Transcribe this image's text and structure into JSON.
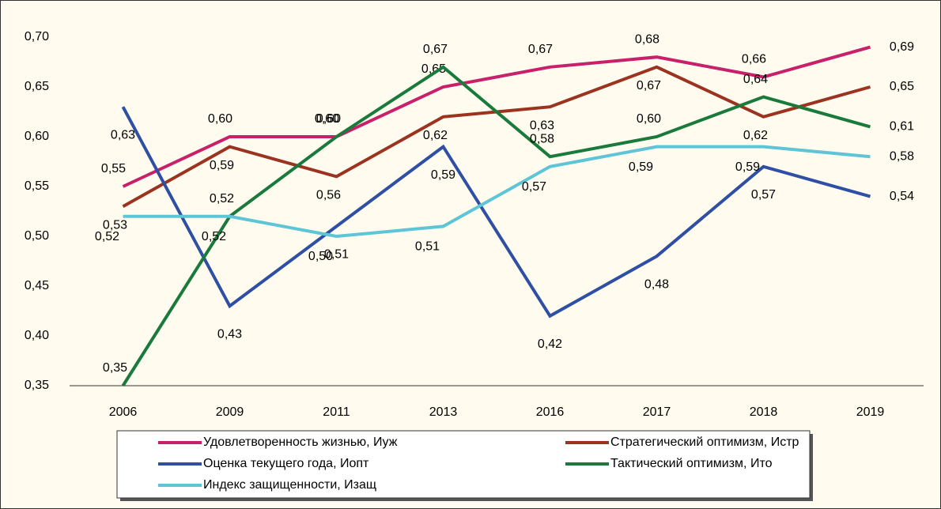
{
  "chart_data": {
    "type": "line",
    "categories": [
      "2006",
      "2009",
      "2011",
      "2013",
      "2016",
      "2017",
      "2018",
      "2019"
    ],
    "ylim": [
      0.35,
      0.7
    ],
    "yticks": [
      {
        "value": 0.35,
        "label": "0,35"
      },
      {
        "value": 0.4,
        "label": "0,40"
      },
      {
        "value": 0.45,
        "label": "0,45"
      },
      {
        "value": 0.5,
        "label": "0,50"
      },
      {
        "value": 0.55,
        "label": "0,55"
      },
      {
        "value": 0.6,
        "label": "0,60"
      },
      {
        "value": 0.65,
        "label": "0,65"
      },
      {
        "value": 0.7,
        "label": "0,70"
      }
    ],
    "grid": false,
    "legend": "bottom",
    "series": [
      {
        "name": "Удовлетворенность жизнью, Иуж",
        "color": "#c8206a",
        "values": [
          0.55,
          0.6,
          0.6,
          0.65,
          0.67,
          0.68,
          0.66,
          0.69
        ],
        "value_labels": [
          "0,55",
          "0,60",
          "0,60",
          "0,65",
          "0,67",
          "0,68",
          "0,66",
          "0,69"
        ]
      },
      {
        "name": "Стратегический оптимизм, Истр",
        "color": "#9b3320",
        "values": [
          0.53,
          0.59,
          0.56,
          0.62,
          0.63,
          0.67,
          0.62,
          0.65
        ],
        "value_labels": [
          "0,53",
          "0,59",
          "0,56",
          "0,62",
          "0,63",
          "0,67",
          "0,62",
          "0,65"
        ]
      },
      {
        "name": "Оценка текущего года, Иопт",
        "color": "#2e4fa3",
        "values": [
          0.63,
          0.43,
          0.51,
          0.59,
          0.42,
          0.48,
          0.57,
          0.54
        ],
        "value_labels": [
          "0,63",
          "0,43",
          "0,51",
          "0,59",
          "0,42",
          "0,48",
          "0,57",
          "0,54"
        ]
      },
      {
        "name": "Тактический оптимизм, Ито",
        "color": "#1a7a3c",
        "values": [
          0.35,
          0.52,
          0.6,
          0.67,
          0.58,
          0.6,
          0.64,
          0.61
        ],
        "value_labels": [
          "0,35",
          "0,52",
          "0,60",
          "0,67",
          "0,58",
          "0,60",
          "0,64",
          "0,61"
        ]
      },
      {
        "name": "Индекс защищенности, Изащ",
        "color": "#5ec5d6",
        "values": [
          0.52,
          0.52,
          0.5,
          0.51,
          0.57,
          0.59,
          0.59,
          0.58
        ],
        "value_labels": [
          "0,52",
          "0,52",
          "0,50",
          "0,51",
          "0,57",
          "0,59",
          "0,59",
          "0,58"
        ]
      }
    ]
  }
}
